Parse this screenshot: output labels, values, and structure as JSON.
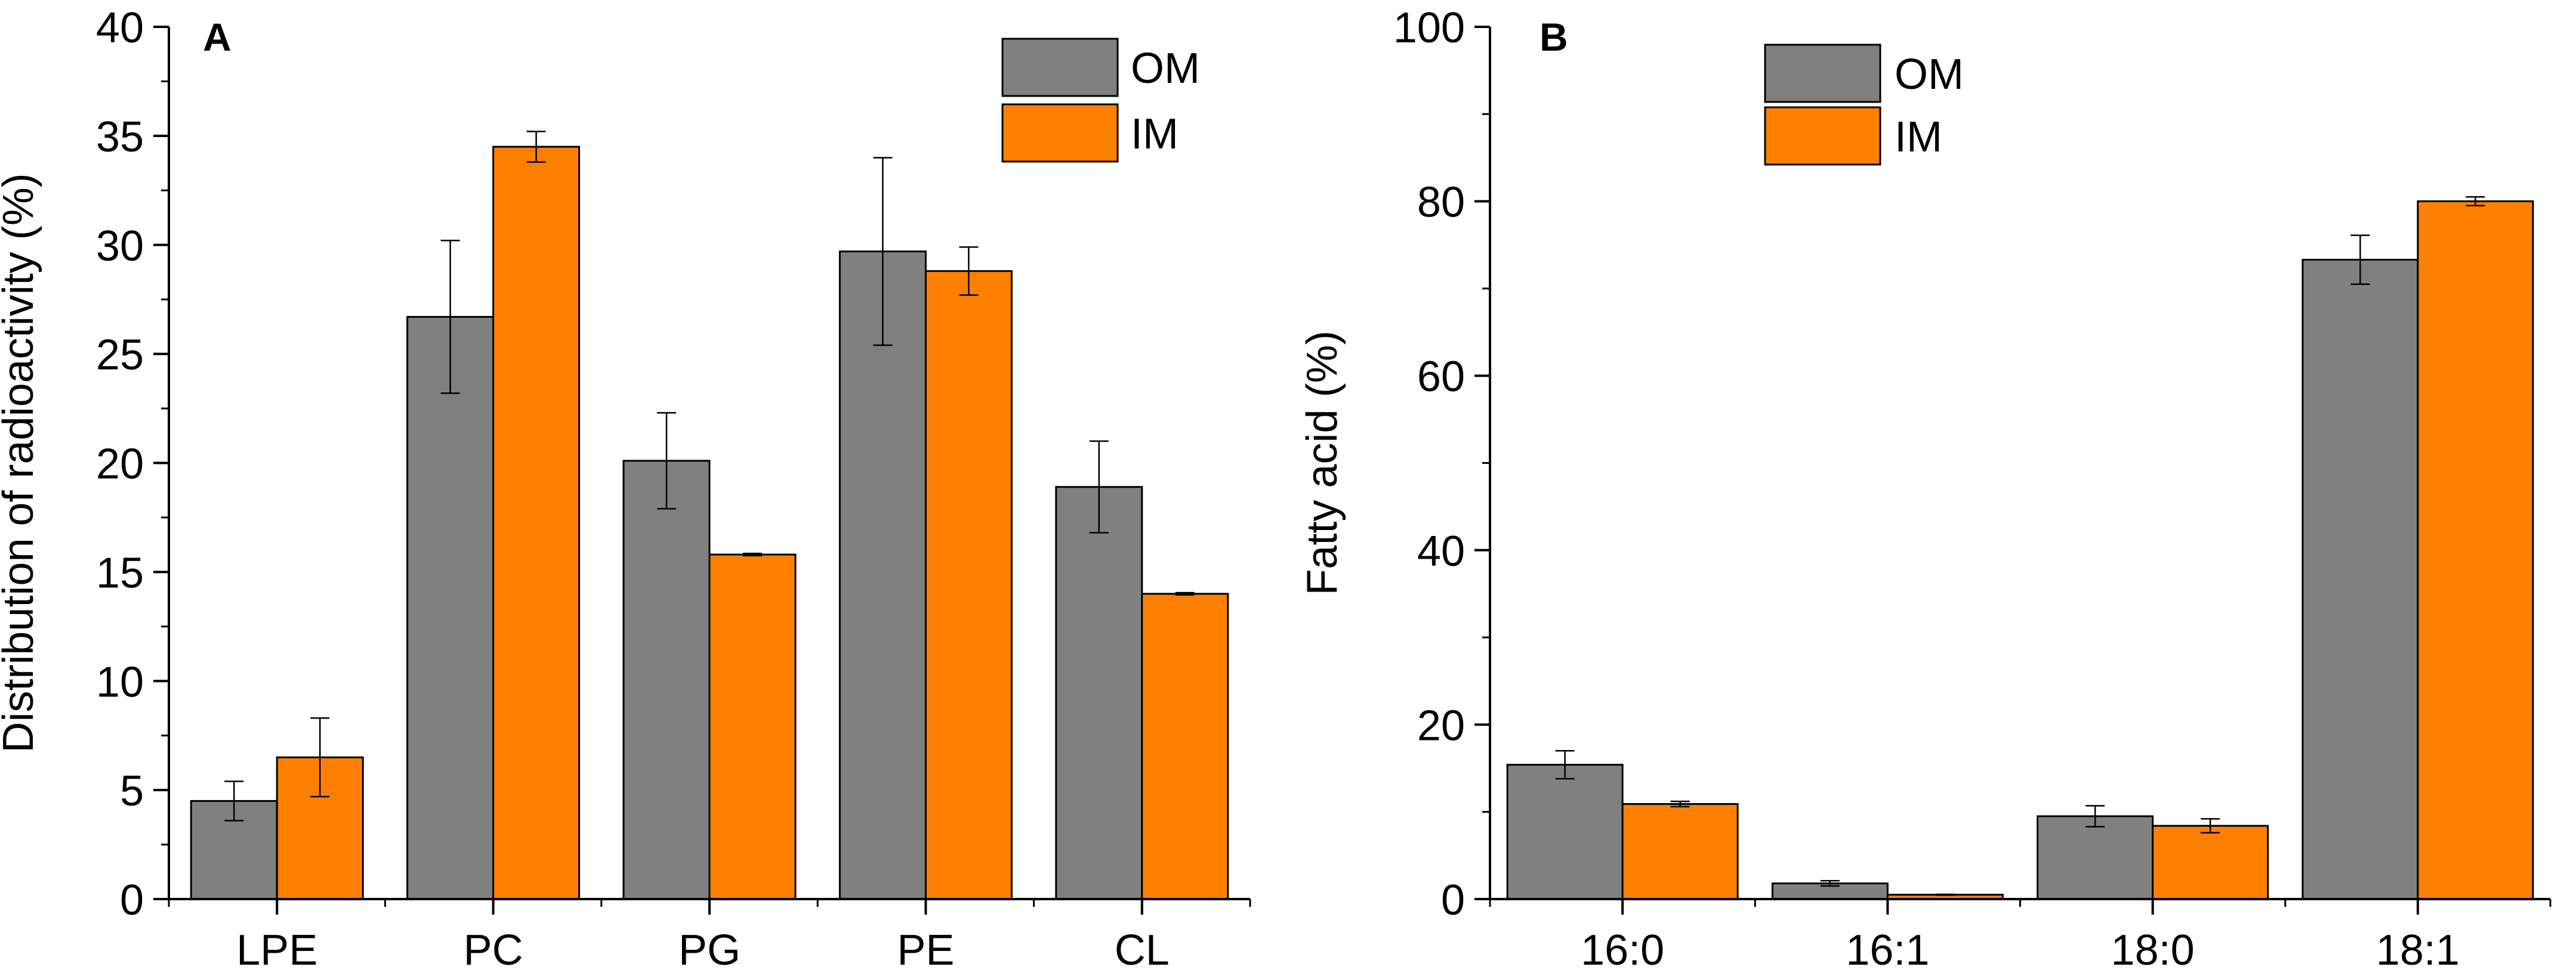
{
  "chart_data": [
    {
      "panel_label": "A",
      "type": "bar",
      "ylabel": "Distribution of radioactivity (%)",
      "xlabel": "",
      "ylim": [
        0,
        40
      ],
      "yticks": [
        "0",
        "5",
        "10",
        "15",
        "20",
        "25",
        "30",
        "35",
        "40"
      ],
      "categories": [
        "LPE",
        "PC",
        "PG",
        "PE",
        "CL"
      ],
      "series": [
        {
          "name": "OM",
          "color": "#808080",
          "values": [
            4.5,
            26.7,
            20.1,
            29.7,
            18.9
          ],
          "errors": [
            0.9,
            3.5,
            2.2,
            4.3,
            2.1
          ]
        },
        {
          "name": "IM",
          "color": "#ff8000",
          "values": [
            6.5,
            34.5,
            15.8,
            28.8,
            14.0
          ],
          "errors": [
            1.8,
            0.7,
            0.05,
            1.1,
            0.05
          ]
        }
      ]
    },
    {
      "panel_label": "B",
      "type": "bar",
      "ylabel": "Fatty acid (%)",
      "xlabel": "",
      "ylim": [
        0,
        100
      ],
      "yticks": [
        "0",
        "20",
        "40",
        "60",
        "80",
        "100"
      ],
      "categories": [
        "16:0",
        "16:1",
        "18:0",
        "18:1"
      ],
      "series": [
        {
          "name": "OM",
          "color": "#808080",
          "values": [
            15.4,
            1.8,
            9.5,
            73.3
          ],
          "errors": [
            1.6,
            0.3,
            1.2,
            2.8
          ]
        },
        {
          "name": "IM",
          "color": "#ff8000",
          "values": [
            10.9,
            0.5,
            8.4,
            80.0
          ],
          "errors": [
            0.3,
            0.05,
            0.8,
            0.5
          ]
        }
      ]
    }
  ]
}
